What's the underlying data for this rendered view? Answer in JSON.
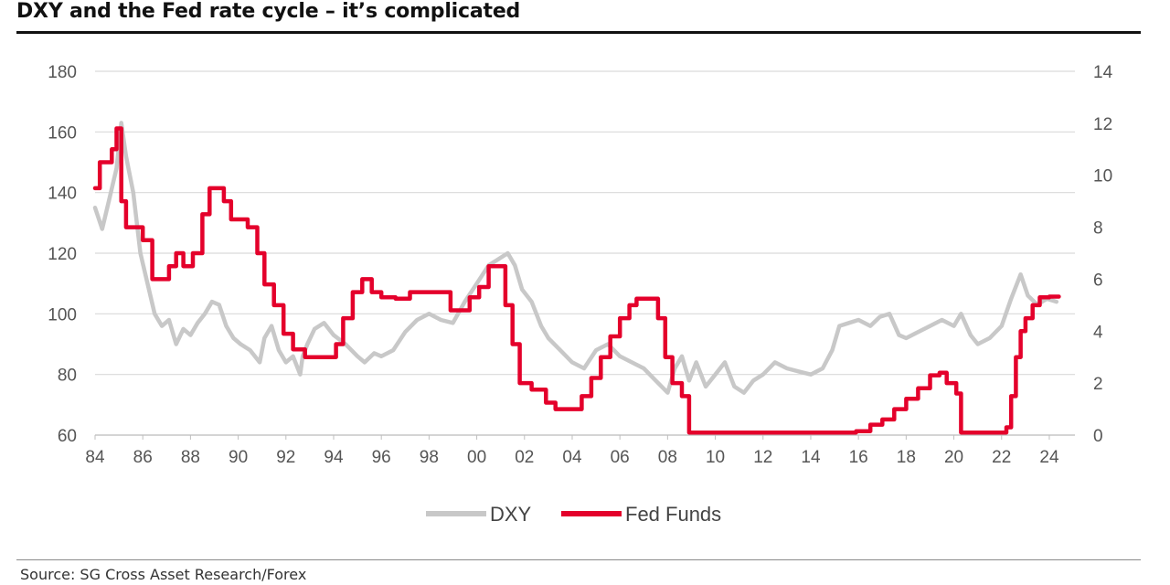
{
  "title": "DXY and the Fed rate cycle – it’s complicated",
  "source": "Source: SG Cross Asset Research/Forex",
  "colors": {
    "dxy": "#c8c8c8",
    "fed": "#e4002b",
    "grid": "#d9d9d9"
  },
  "chart_data": {
    "type": "line",
    "title": "DXY and the Fed rate cycle – it’s complicated",
    "grid": true,
    "legend": "bottom-center",
    "left_axis": {
      "ylim": [
        60,
        180
      ],
      "ticks": [
        "60",
        "80",
        "100",
        "120",
        "140",
        "160",
        "180"
      ]
    },
    "right_axis": {
      "ylim": [
        0,
        14
      ],
      "ticks": [
        "0",
        "2",
        "4",
        "6",
        "8",
        "10",
        "12",
        "14"
      ]
    },
    "x_axis": {
      "xlim": [
        1984,
        2024.5
      ],
      "ticks": [
        "84",
        "86",
        "88",
        "90",
        "92",
        "94",
        "96",
        "98",
        "00",
        "02",
        "04",
        "06",
        "08",
        "10",
        "12",
        "14",
        "16",
        "18",
        "20",
        "22",
        "24"
      ]
    },
    "series": [
      {
        "name": "DXY",
        "axis": "left",
        "color": "#c8c8c8",
        "x": [
          1984.0,
          1984.3,
          1984.6,
          1984.9,
          1985.1,
          1985.3,
          1985.6,
          1985.9,
          1986.2,
          1986.5,
          1986.8,
          1987.1,
          1987.4,
          1987.7,
          1988.0,
          1988.3,
          1988.6,
          1988.9,
          1989.2,
          1989.5,
          1989.8,
          1990.1,
          1990.5,
          1990.9,
          1991.1,
          1991.4,
          1991.7,
          1992.0,
          1992.3,
          1992.6,
          1992.7,
          1992.9,
          1993.2,
          1993.6,
          1994.0,
          1994.5,
          1995.0,
          1995.3,
          1995.7,
          1996.0,
          1996.5,
          1997.0,
          1997.5,
          1998.0,
          1998.5,
          1999.0,
          1999.5,
          2000.0,
          2000.5,
          2000.9,
          2001.3,
          2001.6,
          2001.9,
          2002.3,
          2002.7,
          2003.0,
          2003.5,
          2004.0,
          2004.5,
          2005.0,
          2005.5,
          2006.0,
          2006.5,
          2007.0,
          2007.5,
          2008.0,
          2008.3,
          2008.6,
          2008.9,
          2009.2,
          2009.6,
          2010.0,
          2010.4,
          2010.8,
          2011.2,
          2011.6,
          2012.0,
          2012.5,
          2013.0,
          2013.5,
          2014.0,
          2014.5,
          2014.9,
          2015.2,
          2015.6,
          2016.0,
          2016.5,
          2016.9,
          2017.3,
          2017.7,
          2018.0,
          2018.5,
          2019.0,
          2019.5,
          2020.0,
          2020.3,
          2020.7,
          2021.0,
          2021.5,
          2022.0,
          2022.4,
          2022.8,
          2023.1,
          2023.5,
          2023.9,
          2024.3
        ],
        "values": [
          135,
          128,
          138,
          148,
          163,
          152,
          140,
          120,
          110,
          100,
          96,
          98,
          90,
          95,
          93,
          97,
          100,
          104,
          103,
          96,
          92,
          90,
          88,
          84,
          92,
          96,
          88,
          84,
          86,
          80,
          86,
          90,
          95,
          97,
          93,
          90,
          86,
          84,
          87,
          86,
          88,
          94,
          98,
          100,
          98,
          97,
          104,
          110,
          116,
          118,
          120,
          116,
          108,
          104,
          96,
          92,
          88,
          84,
          82,
          88,
          90,
          86,
          84,
          82,
          78,
          74,
          82,
          86,
          78,
          84,
          76,
          80,
          84,
          76,
          74,
          78,
          80,
          84,
          82,
          81,
          80,
          82,
          88,
          96,
          97,
          98,
          96,
          99,
          100,
          93,
          92,
          94,
          96,
          98,
          96,
          100,
          93,
          90,
          92,
          96,
          105,
          113,
          106,
          103,
          105,
          104
        ],
        "visible_width_note": null
      },
      {
        "name": "Fed Funds",
        "axis": "right",
        "color": "#e4002b",
        "x": [
          1984.0,
          1984.2,
          1984.5,
          1984.7,
          1984.9,
          1985.1,
          1985.3,
          1985.6,
          1986.0,
          1986.4,
          1986.7,
          1987.1,
          1987.4,
          1987.7,
          1988.1,
          1988.5,
          1988.8,
          1989.1,
          1989.4,
          1989.7,
          1990.0,
          1990.4,
          1990.8,
          1991.1,
          1991.5,
          1991.9,
          1992.3,
          1992.8,
          1993.3,
          1993.8,
          1994.1,
          1994.4,
          1994.8,
          1995.2,
          1995.6,
          1996.0,
          1996.6,
          1997.2,
          1997.8,
          1998.6,
          1998.9,
          1999.3,
          1999.7,
          2000.1,
          2000.5,
          2000.9,
          2001.2,
          2001.5,
          2001.8,
          2002.3,
          2002.9,
          2003.3,
          2003.8,
          2004.4,
          2004.8,
          2005.2,
          2005.6,
          2006.0,
          2006.4,
          2006.7,
          2007.2,
          2007.6,
          2007.9,
          2008.2,
          2008.6,
          2008.9,
          2009.5,
          2010.0,
          2012.0,
          2014.0,
          2015.0,
          2015.9,
          2016.5,
          2017.0,
          2017.5,
          2018.0,
          2018.5,
          2019.0,
          2019.4,
          2019.7,
          2020.1,
          2020.3,
          2021.0,
          2022.0,
          2022.2,
          2022.4,
          2022.6,
          2022.8,
          2023.0,
          2023.3,
          2023.6,
          2024.0,
          2024.4
        ],
        "values": [
          9.5,
          10.5,
          10.5,
          11,
          11.8,
          9,
          8,
          8,
          7.5,
          6,
          6,
          6.5,
          7,
          6.5,
          7,
          8.5,
          9.5,
          9.5,
          9,
          8.3,
          8.3,
          8,
          7,
          5.8,
          5,
          3.9,
          3.3,
          3,
          3,
          3,
          3.5,
          4.5,
          5.5,
          6,
          5.5,
          5.3,
          5.25,
          5.5,
          5.5,
          5.5,
          4.8,
          4.8,
          5.3,
          5.7,
          6.5,
          6.5,
          5,
          3.5,
          2,
          1.75,
          1.25,
          1,
          1,
          1.5,
          2.2,
          3,
          3.8,
          4.5,
          5,
          5.25,
          5.25,
          4.5,
          3,
          2,
          1.5,
          0.1,
          0.1,
          0.1,
          0.1,
          0.1,
          0.1,
          0.15,
          0.4,
          0.6,
          1.0,
          1.4,
          1.8,
          2.3,
          2.4,
          2.0,
          1.6,
          0.1,
          0.1,
          0.1,
          0.3,
          1.5,
          3,
          4,
          4.5,
          5.0,
          5.3,
          5.33,
          5.33
        ]
      }
    ]
  },
  "legend": {
    "dxy_label": "DXY",
    "fed_label": "Fed Funds"
  }
}
